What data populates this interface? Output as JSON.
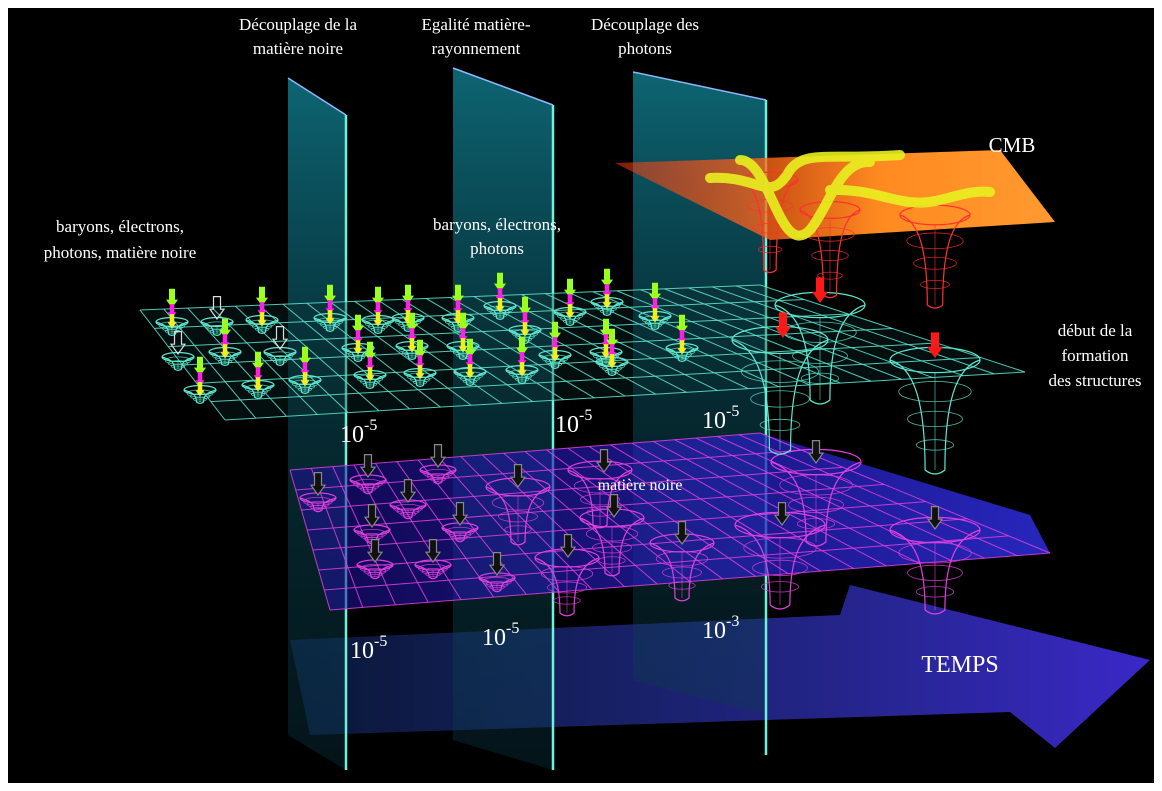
{
  "phases": {
    "dm_decoupling": [
      "Découplage de la",
      "matière noire"
    ],
    "equality": [
      "Egalité matière-",
      "rayonnement"
    ],
    "photon_decoupling": [
      "Découplage des",
      "photons"
    ]
  },
  "labels": {
    "cmb": "CMB",
    "left_species": [
      "baryons, électrons,",
      "photons, matière noire"
    ],
    "mid_species": [
      "baryons, électrons,",
      "photons"
    ],
    "structures": [
      "début de la",
      "formation",
      "des structures"
    ],
    "dark_matter": "matière noire",
    "time": "TEMPS"
  },
  "amplitudes": {
    "base": "10",
    "upper": [
      "-5",
      "-5",
      "-5"
    ],
    "lower": [
      "-5",
      "-5",
      "-3"
    ]
  },
  "colors": {
    "background": "#000000",
    "grid_upper": "#5fe8d0",
    "grid_lower": "#e040e0",
    "plane_lower": "#2c1ec0",
    "cmb_plane": "#ff7a10",
    "time_arrow": "#3a2ad8",
    "divider": "#6ff0d8",
    "arrow_yellow": "#f0f020",
    "arrow_green": "#9cff20",
    "arrow_magenta": "#ff20e0",
    "arrow_red": "#ff1818",
    "arrow_black": "#111111"
  }
}
